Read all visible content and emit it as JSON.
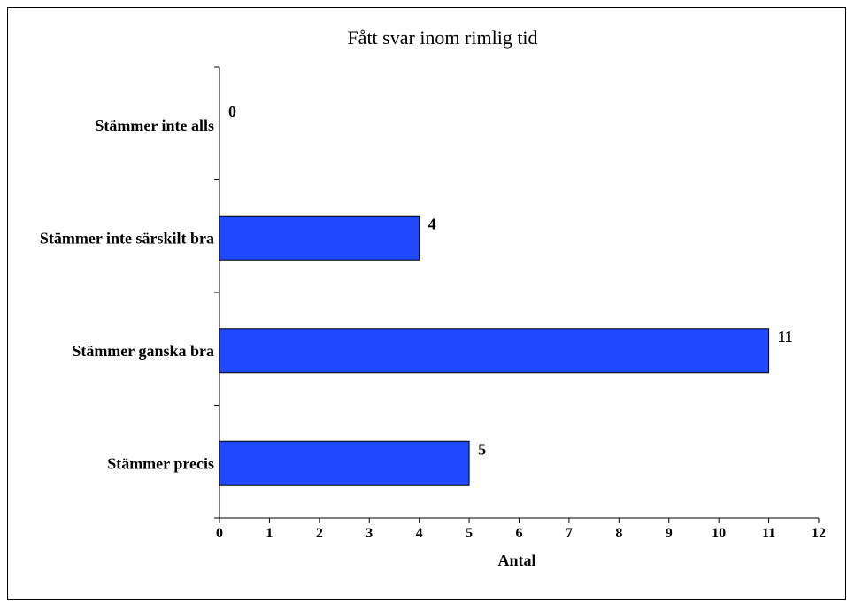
{
  "chart_data": {
    "type": "bar",
    "orientation": "horizontal",
    "title": "Fått svar inom rimlig tid",
    "xlabel": "Antal",
    "ylabel": "",
    "categories": [
      "Stämmer inte alls",
      "Stämmer inte särskilt bra",
      "Stämmer ganska bra",
      "Stämmer precis"
    ],
    "values": [
      0,
      4,
      11,
      5
    ],
    "data_labels": [
      "0",
      "4",
      "11",
      "5"
    ],
    "xlim": [
      0,
      12
    ],
    "x_ticks": [
      "0",
      "1",
      "2",
      "3",
      "4",
      "5",
      "6",
      "7",
      "8",
      "9",
      "10",
      "11",
      "12"
    ],
    "grid": false,
    "legend": "none",
    "bar_color": "#1F48FF",
    "bar_edge_color": "#000000"
  }
}
